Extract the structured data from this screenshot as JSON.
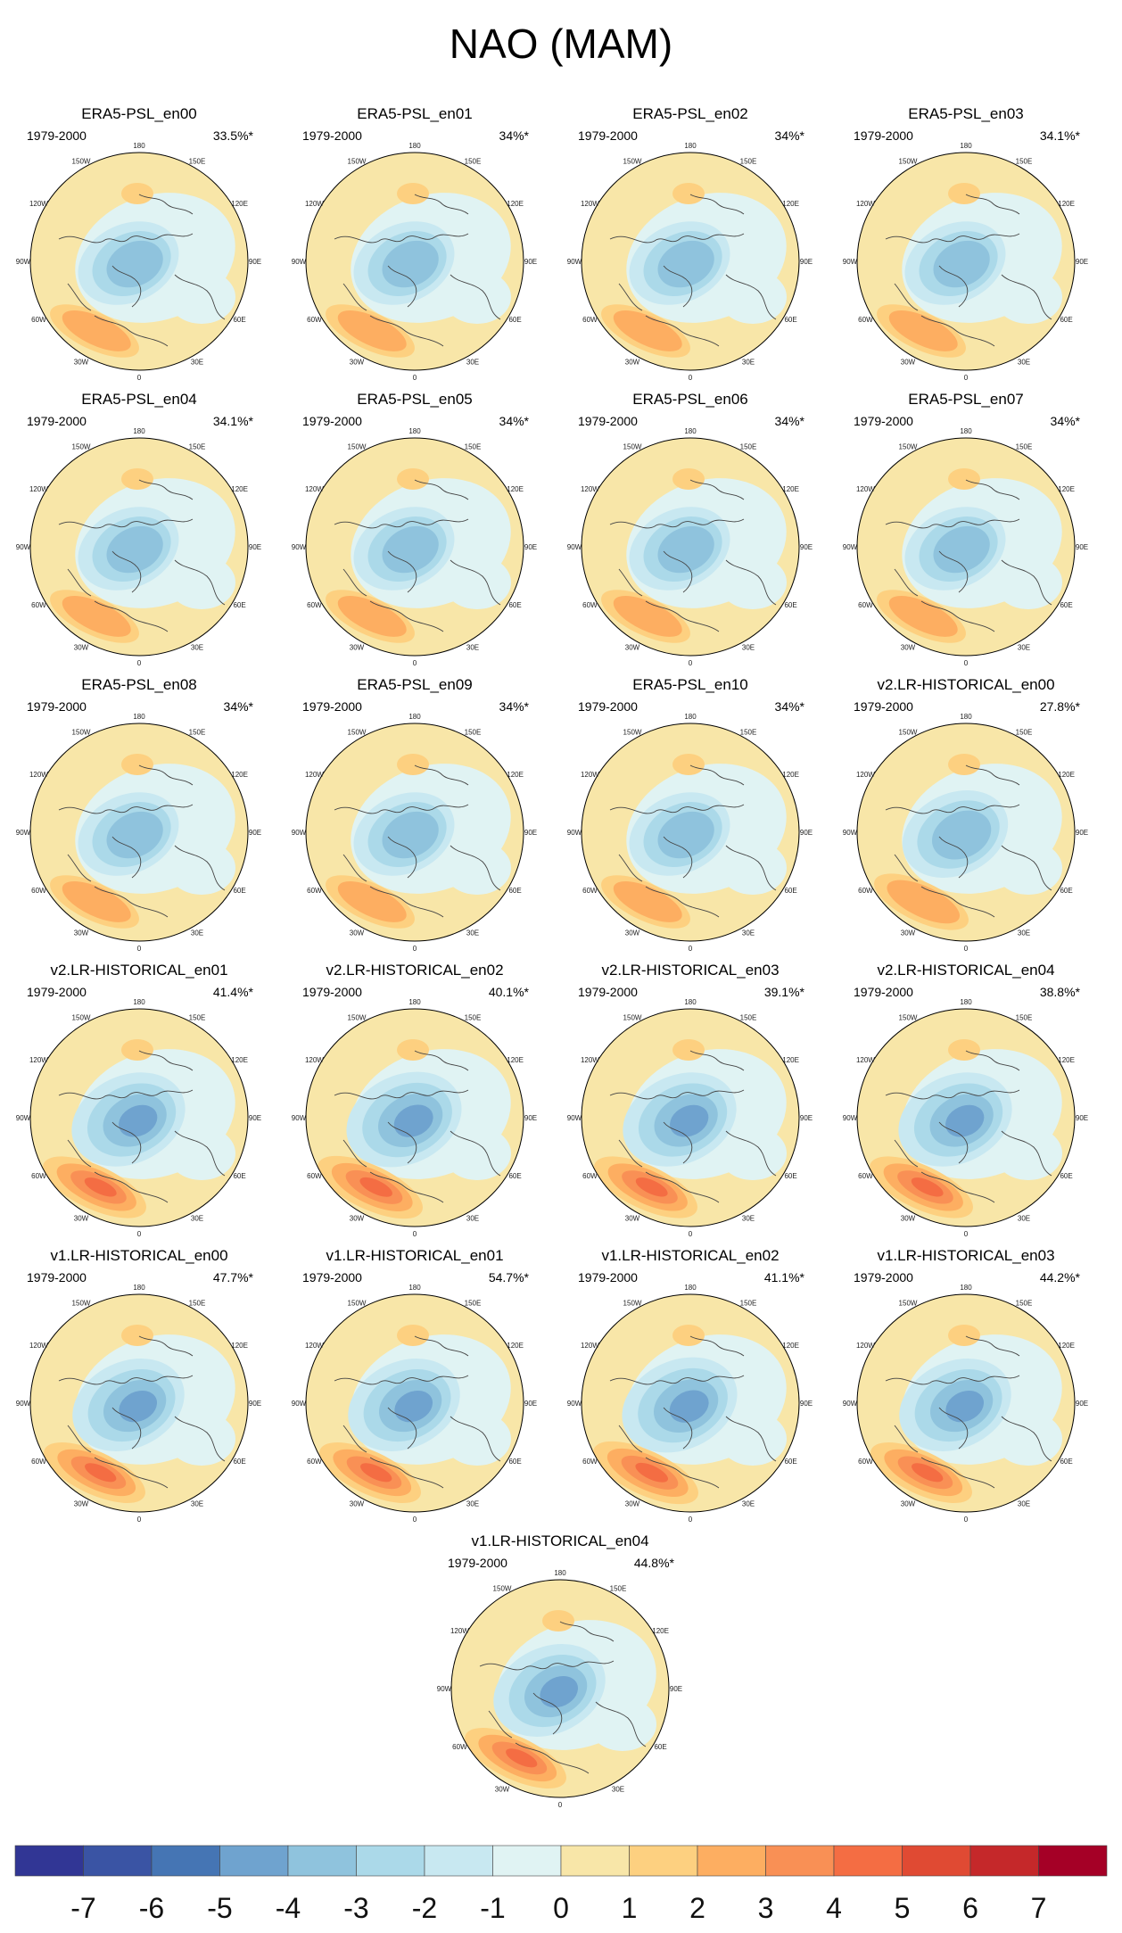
{
  "figure_title": "NAO (MAM)",
  "lon_labels": [
    "180",
    "150E",
    "120E",
    "90E",
    "60E",
    "30E",
    "0",
    "30W",
    "60W",
    "90W",
    "120W",
    "150W"
  ],
  "panels": [
    {
      "title": "ERA5-PSL_en00",
      "period": "1979-2000",
      "variance": "33.5%*",
      "strength": 0.5
    },
    {
      "title": "ERA5-PSL_en01",
      "period": "1979-2000",
      "variance": "34%*",
      "strength": 0.5
    },
    {
      "title": "ERA5-PSL_en02",
      "period": "1979-2000",
      "variance": "34%*",
      "strength": 0.5
    },
    {
      "title": "ERA5-PSL_en03",
      "period": "1979-2000",
      "variance": "34.1%*",
      "strength": 0.5
    },
    {
      "title": "ERA5-PSL_en04",
      "period": "1979-2000",
      "variance": "34.1%*",
      "strength": 0.5
    },
    {
      "title": "ERA5-PSL_en05",
      "period": "1979-2000",
      "variance": "34%*",
      "strength": 0.5
    },
    {
      "title": "ERA5-PSL_en06",
      "period": "1979-2000",
      "variance": "34%*",
      "strength": 0.5
    },
    {
      "title": "ERA5-PSL_en07",
      "period": "1979-2000",
      "variance": "34%*",
      "strength": 0.5
    },
    {
      "title": "ERA5-PSL_en08",
      "period": "1979-2000",
      "variance": "34%*",
      "strength": 0.5
    },
    {
      "title": "ERA5-PSL_en09",
      "period": "1979-2000",
      "variance": "34%*",
      "strength": 0.5
    },
    {
      "title": "ERA5-PSL_en10",
      "period": "1979-2000",
      "variance": "34%*",
      "strength": 0.5
    },
    {
      "title": "v2.LR-HISTORICAL_en00",
      "period": "1979-2000",
      "variance": "27.8%*",
      "strength": 0.65
    },
    {
      "title": "v2.LR-HISTORICAL_en01",
      "period": "1979-2000",
      "variance": "41.4%*",
      "strength": 0.9
    },
    {
      "title": "v2.LR-HISTORICAL_en02",
      "period": "1979-2000",
      "variance": "40.1%*",
      "strength": 0.95
    },
    {
      "title": "v2.LR-HISTORICAL_en03",
      "period": "1979-2000",
      "variance": "39.1%*",
      "strength": 0.9
    },
    {
      "title": "v2.LR-HISTORICAL_en04",
      "period": "1979-2000",
      "variance": "38.8%*",
      "strength": 0.9
    },
    {
      "title": "v1.LR-HISTORICAL_en00",
      "period": "1979-2000",
      "variance": "47.7%*",
      "strength": 0.85
    },
    {
      "title": "v1.LR-HISTORICAL_en01",
      "period": "1979-2000",
      "variance": "54.7%*",
      "strength": 0.85
    },
    {
      "title": "v1.LR-HISTORICAL_en02",
      "period": "1979-2000",
      "variance": "41.1%*",
      "strength": 0.95
    },
    {
      "title": "v1.LR-HISTORICAL_en03",
      "period": "1979-2000",
      "variance": "44.2%*",
      "strength": 0.85
    },
    {
      "title": "v1.LR-HISTORICAL_en04",
      "period": "1979-2000",
      "variance": "44.8%*",
      "strength": 0.85
    }
  ],
  "colorbar": {
    "levels": [
      -7,
      -6,
      -5,
      -4,
      -3,
      -2,
      -1,
      0,
      1,
      2,
      3,
      4,
      5,
      6,
      7
    ],
    "labels": [
      "-7",
      "-6",
      "-5",
      "-4",
      "-3",
      "-2",
      "-1",
      "0",
      "1",
      "2",
      "3",
      "4",
      "5",
      "6",
      "7"
    ],
    "colors": [
      "#313695",
      "#3a54a4",
      "#4575b4",
      "#6fa3cf",
      "#8fc3dd",
      "#abd9e9",
      "#c8e8f1",
      "#e0f3f3",
      "#f8e6a8",
      "#fdd080",
      "#fdae61",
      "#f99055",
      "#f46d43",
      "#e04a33",
      "#c5282a",
      "#a50026"
    ]
  }
}
